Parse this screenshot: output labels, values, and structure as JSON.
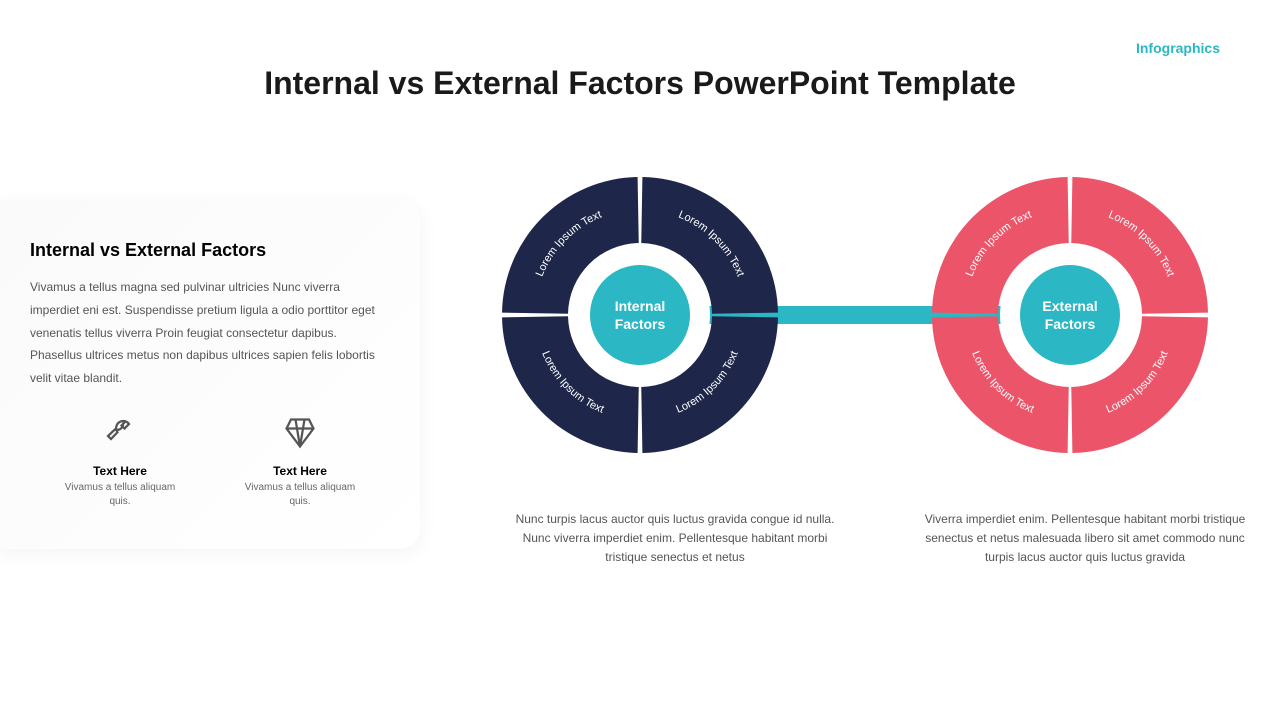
{
  "category": {
    "text": "Infographics",
    "color": "#2bb8c4"
  },
  "title": {
    "text": "Internal vs External Factors PowerPoint Template",
    "color": "#1a1a1a"
  },
  "sidebar": {
    "title": "Internal vs External Factors",
    "body": "Vivamus a tellus magna sed pulvinar ultricies Nunc viverra imperdiet eni est. Suspendisse pretium ligula a odio porttitor eget venenatis tellus viverra Proin feugiat consectetur dapibus. Phasellus ultrices metus non dapibus ultrices sapien felis lobortis velit vitae blandit.",
    "icons": [
      {
        "name": "wrench-icon",
        "title": "Text Here",
        "text": "Vivamus a tellus aliquam quis."
      },
      {
        "name": "diamond-icon",
        "title": "Text Here",
        "text": "Vivamus a tellus aliquam quis."
      }
    ]
  },
  "diagram": {
    "connector_color": "#2bb8c4",
    "center_color": "#2bb8c4",
    "left": {
      "center_label": "Internal Factors",
      "ring_color": "#1e2749",
      "segments": [
        "Lorem Ipsum Text",
        "Lorem Ipsum Text",
        "Lorem Ipsum Text",
        "Lorem Ipsum Text"
      ],
      "caption": "Nunc turpis lacus auctor quis luctus gravida congue id nulla. Nunc viverra imperdiet enim. Pellentesque habitant morbi tristique senectus et netus"
    },
    "right": {
      "center_label": "External Factors",
      "ring_color": "#ec5569",
      "segments": [
        "Lorem Ipsum Text",
        "Lorem Ipsum Text",
        "Lorem Ipsum Text",
        "Lorem Ipsum Text"
      ],
      "caption": "Viverra imperdiet enim. Pellentesque habitant morbi tristique senectus et netus malesuada libero sit amet commodo nunc turpis lacus auctor quis luctus gravida"
    },
    "segment_text_color": "#ffffff",
    "segment_font_size": 11,
    "gap_deg": 2
  }
}
